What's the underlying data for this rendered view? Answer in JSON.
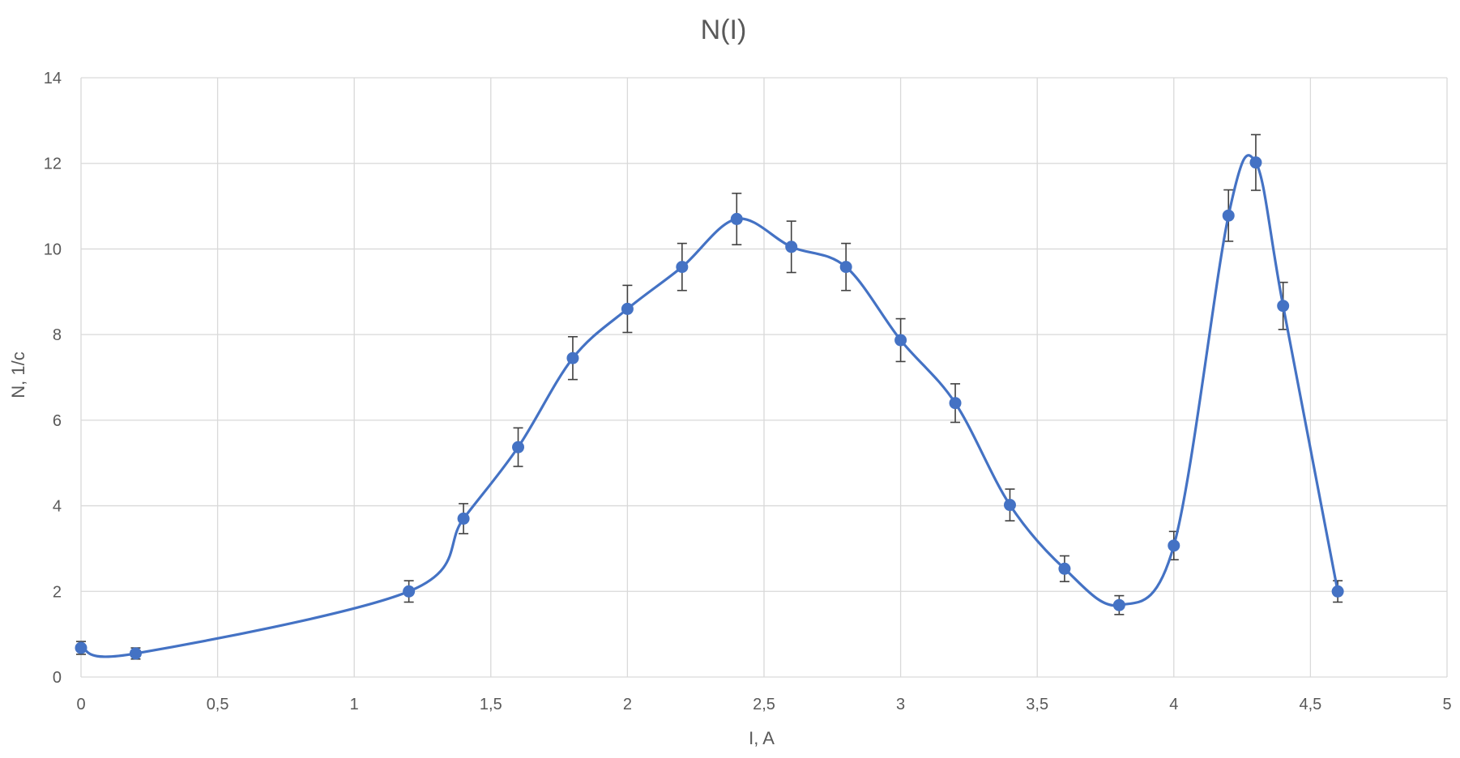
{
  "chart_data": {
    "type": "scatter",
    "title": "N(I)",
    "xlabel": "I, A",
    "ylabel": "N, 1/c",
    "xlim": [
      0,
      5
    ],
    "ylim": [
      0,
      14
    ],
    "x_ticks": [
      0,
      0.5,
      1,
      1.5,
      2,
      2.5,
      3,
      3.5,
      4,
      4.5,
      5
    ],
    "x_tick_labels": [
      "0",
      "0,5",
      "1",
      "1,5",
      "2",
      "2,5",
      "3",
      "3,5",
      "4",
      "4,5",
      "5"
    ],
    "y_ticks": [
      0,
      2,
      4,
      6,
      8,
      10,
      12,
      14
    ],
    "y_tick_labels": [
      "0",
      "2",
      "4",
      "6",
      "8",
      "10",
      "12",
      "14"
    ],
    "grid": true,
    "smoothed_line": true,
    "color": "#4472c4",
    "error_bar_color": "#404040",
    "series": [
      {
        "x": [
          0,
          0.2,
          1.2,
          1.4,
          1.6,
          1.8,
          2.0,
          2.2,
          2.4,
          2.6,
          2.8,
          3.0,
          3.2,
          3.4,
          3.6,
          3.8,
          4.0,
          4.2,
          4.3,
          4.4,
          4.6
        ],
        "y": [
          0.68,
          0.55,
          2.0,
          3.7,
          5.37,
          7.45,
          8.6,
          9.58,
          10.7,
          10.05,
          9.58,
          7.87,
          6.4,
          4.02,
          2.53,
          1.68,
          3.07,
          10.78,
          12.02,
          8.67,
          2.0
        ],
        "error": [
          0.15,
          0.13,
          0.25,
          0.35,
          0.45,
          0.5,
          0.55,
          0.55,
          0.6,
          0.6,
          0.55,
          0.5,
          0.45,
          0.37,
          0.3,
          0.22,
          0.33,
          0.6,
          0.65,
          0.55,
          0.25
        ]
      }
    ]
  }
}
